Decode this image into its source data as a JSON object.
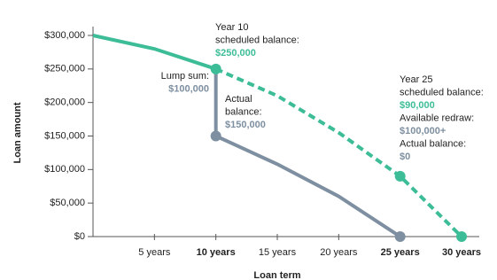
{
  "chart_data": {
    "type": "line",
    "x_label": "Loan term",
    "y_label": "Loan amount",
    "xlim": [
      0,
      30
    ],
    "ylim": [
      0,
      300000
    ],
    "xticks": [
      {
        "value": 5,
        "label": "5 years",
        "bold": false
      },
      {
        "value": 10,
        "label": "10 years",
        "bold": true
      },
      {
        "value": 15,
        "label": "15 years",
        "bold": false
      },
      {
        "value": 20,
        "label": "20 years",
        "bold": false
      },
      {
        "value": 25,
        "label": "25 years",
        "bold": true
      },
      {
        "value": 30,
        "label": "30 years",
        "bold": true
      }
    ],
    "yticks": [
      {
        "value": 0,
        "label": "$0"
      },
      {
        "value": 50000,
        "label": "$50,000"
      },
      {
        "value": 100000,
        "label": "$100,000"
      },
      {
        "value": 150000,
        "label": "$150,000"
      },
      {
        "value": 200000,
        "label": "$200,000"
      },
      {
        "value": 250000,
        "label": "$250,000"
      },
      {
        "value": 300000,
        "label": "$300,000"
      }
    ],
    "series": [
      {
        "color": "#3dbd97",
        "dash": false,
        "x": [
          0,
          5,
          10
        ],
        "values": [
          300000,
          280000,
          250000
        ],
        "marker_indices": [
          2
        ]
      },
      {
        "color": "#3dbd97",
        "dash": true,
        "x": [
          10,
          15,
          20,
          25,
          30
        ],
        "values": [
          250000,
          210000,
          155000,
          90000,
          0
        ],
        "marker_indices": [
          3,
          4
        ]
      },
      {
        "color": "#7d8fa0",
        "dash": false,
        "x": [
          10,
          10,
          15,
          20,
          25
        ],
        "values": [
          250000,
          150000,
          108000,
          60000,
          0
        ],
        "marker_indices": [
          1,
          4
        ]
      }
    ],
    "annotations": [
      {
        "lines": [
          {
            "text": "Year 10",
            "color": "#222",
            "bold": false
          },
          {
            "text": "scheduled balance:",
            "color": "#222",
            "bold": false
          },
          {
            "text": "$250,000",
            "color": "#3dbd97",
            "bold": true
          }
        ]
      },
      {
        "lines": [
          {
            "text": "Lump sum:",
            "color": "#222",
            "bold": false
          },
          {
            "text": "$100,000",
            "color": "#7d8fa0",
            "bold": true
          }
        ]
      },
      {
        "lines": [
          {
            "text": "Actual",
            "color": "#222",
            "bold": false
          },
          {
            "text": "balance:",
            "color": "#222",
            "bold": false
          },
          {
            "text": "$150,000",
            "color": "#7d8fa0",
            "bold": true
          }
        ]
      },
      {
        "lines": [
          {
            "text": "Year 25",
            "color": "#222",
            "bold": false
          },
          {
            "text": "scheduled balance:",
            "color": "#222",
            "bold": false
          },
          {
            "text": "$90,000",
            "color": "#3dbd97",
            "bold": true
          },
          {
            "text": "Available redraw:",
            "color": "#222",
            "bold": false
          },
          {
            "text": "$100,000+",
            "color": "#7d8fa0",
            "bold": true
          },
          {
            "text": "Actual balance:",
            "color": "#222",
            "bold": false
          },
          {
            "text": "$0",
            "color": "#7d8fa0",
            "bold": true
          }
        ]
      }
    ]
  }
}
